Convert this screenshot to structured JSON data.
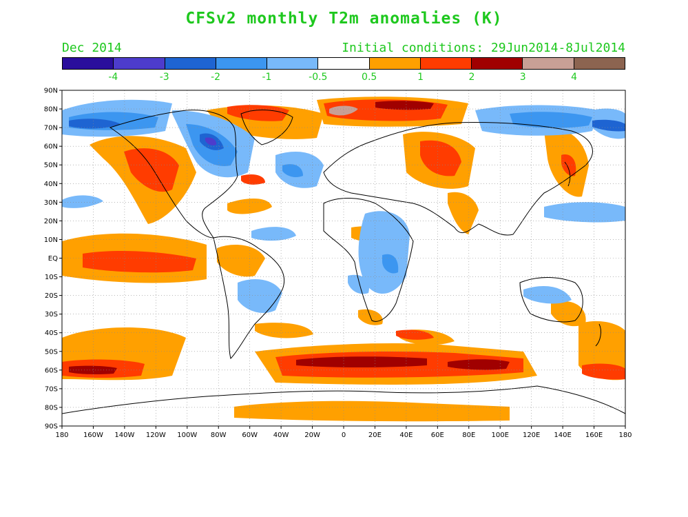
{
  "title": "CFSv2 monthly T2m anomalies (K)",
  "valid_month": "Dec 2014",
  "initial_conditions": "Initial conditions: 29Jun2014-8Jul2014",
  "colorbar": {
    "colors": [
      "#2a0e9c",
      "#4d3ccc",
      "#1e64d2",
      "#3c96f0",
      "#78b9fa",
      "#ffffff",
      "#ffa000",
      "#ff3c00",
      "#a00000",
      "#c8a096",
      "#8c6450"
    ],
    "labels": [
      "-4",
      "-3",
      "-2",
      "-1",
      "-0.5",
      "0.5",
      "1",
      "2",
      "3",
      "4"
    ]
  },
  "map": {
    "lat_labels": [
      "90N",
      "80N",
      "70N",
      "60N",
      "50N",
      "40N",
      "30N",
      "20N",
      "10N",
      "EQ",
      "10S",
      "20S",
      "30S",
      "40S",
      "50S",
      "60S",
      "70S",
      "80S",
      "90S"
    ],
    "lon_labels": [
      "180",
      "160W",
      "140W",
      "120W",
      "100W",
      "80W",
      "60W",
      "40W",
      "20W",
      "0",
      "20E",
      "40E",
      "60E",
      "80E",
      "100E",
      "120E",
      "140E",
      "160E",
      "180"
    ],
    "background": "#ffffff",
    "grid": true,
    "coastline_color": "#000000"
  }
}
